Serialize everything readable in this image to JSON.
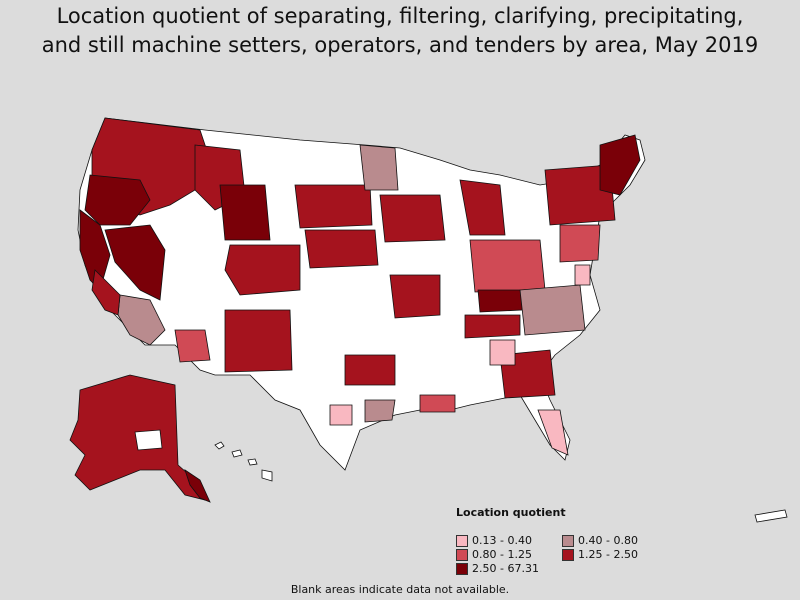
{
  "title_line1": "Location quotient of separating, filtering, clarifying, precipitating,",
  "title_line2": "and still machine setters, operators, and tenders by area, May 2019",
  "legend": {
    "title": "Location quotient",
    "items": [
      {
        "label": "0.13 - 0.40",
        "color": "#f9b8c1"
      },
      {
        "label": "0.40 - 0.80",
        "color": "#b98b8e"
      },
      {
        "label": "0.80 - 1.25",
        "color": "#d04a55"
      },
      {
        "label": "1.25 - 2.50",
        "color": "#a5131e"
      },
      {
        "label": "2.50 - 67.31",
        "color": "#7a0008"
      }
    ]
  },
  "footnote": "Blank areas indicate data not available.",
  "colors": {
    "background": "#dcdcdc",
    "no_data": "#ffffff",
    "border": "#111111"
  }
}
